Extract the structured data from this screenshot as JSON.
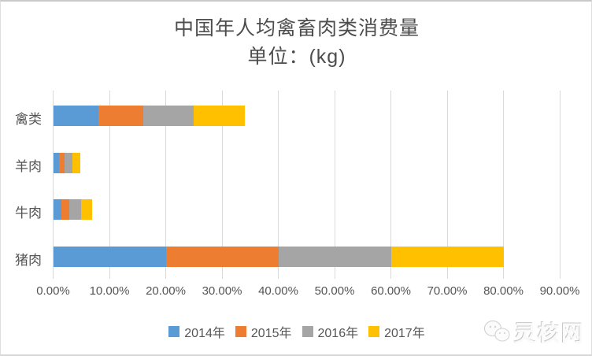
{
  "title": "中国年人均禽畜肉类消费量",
  "subtitle": "单位：(kg)",
  "watermark": {
    "text": "灵核网",
    "icon": "chat-bubbles-icon"
  },
  "colors": {
    "series_blue": "#5B9BD5",
    "series_orange": "#ED7D31",
    "series_gray": "#A5A5A5",
    "series_yellow": "#FFC000",
    "gridline": "#D9D9D9",
    "text": "#595959"
  },
  "chart_data": {
    "type": "bar",
    "orientation": "horizontal",
    "stacked": true,
    "title": "中国年人均禽畜肉类消费量",
    "subtitle": "单位：(kg)",
    "categories": [
      "禽类",
      "羊肉",
      "牛肉",
      "猪肉"
    ],
    "series": [
      {
        "name": "2014年",
        "color": "#5B9BD5",
        "values": [
          8,
          1,
          1.4,
          20
        ]
      },
      {
        "name": "2015年",
        "color": "#ED7D31",
        "values": [
          8,
          1,
          1.5,
          20
        ]
      },
      {
        "name": "2016年",
        "color": "#A5A5A5",
        "values": [
          9,
          1.4,
          2,
          20
        ]
      },
      {
        "name": "2017年",
        "color": "#FFC000",
        "values": [
          9,
          1.4,
          2,
          20
        ]
      }
    ],
    "x_axis": {
      "min": 0,
      "max": 90,
      "step": 10,
      "unit": "%",
      "tick_labels": [
        "0.00%",
        "10.00%",
        "20.00%",
        "30.00%",
        "40.00%",
        "50.00%",
        "60.00%",
        "70.00%",
        "80.00%",
        "90.00%"
      ]
    },
    "ylabel": "",
    "xlabel": "",
    "grid": "vertical",
    "legend_position": "bottom"
  }
}
